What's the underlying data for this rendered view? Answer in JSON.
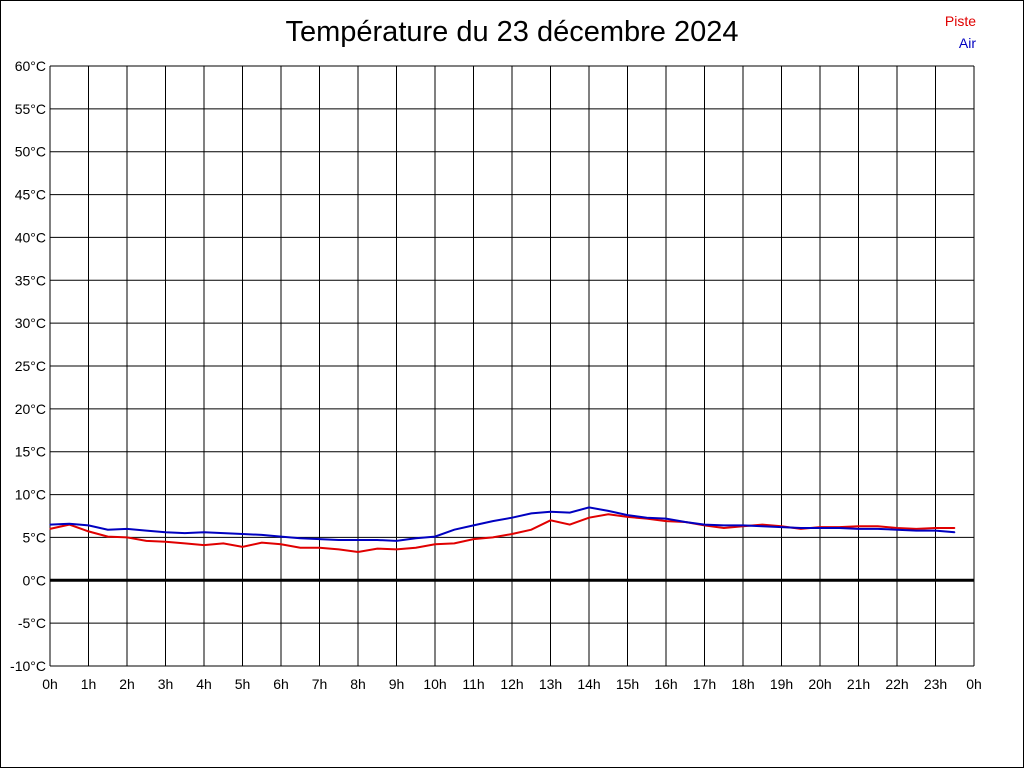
{
  "chart_data": {
    "type": "line",
    "title": "Température du 23 décembre 2024",
    "y_ticks": [
      "-10°C",
      "-5°C",
      "0°C",
      "5°C",
      "10°C",
      "15°C",
      "20°C",
      "25°C",
      "30°C",
      "35°C",
      "40°C",
      "45°C",
      "50°C",
      "55°C",
      "60°C"
    ],
    "x_ticks": [
      "0h",
      "1h",
      "2h",
      "3h",
      "4h",
      "5h",
      "6h",
      "7h",
      "8h",
      "9h",
      "10h",
      "11h",
      "12h",
      "13h",
      "14h",
      "15h",
      "16h",
      "17h",
      "18h",
      "19h",
      "20h",
      "21h",
      "22h",
      "23h",
      "0h"
    ],
    "ylim": [
      -10,
      60
    ],
    "xlim": [
      0,
      24
    ],
    "grid": true,
    "legend_position": "top-right",
    "series": [
      {
        "name": "Piste",
        "color": "#e00000",
        "x": [
          0,
          0.5,
          1,
          1.5,
          2,
          2.5,
          3,
          3.5,
          4,
          4.5,
          5,
          5.5,
          6,
          6.5,
          7,
          7.5,
          8,
          8.5,
          9,
          9.5,
          10,
          10.5,
          11,
          11.5,
          12,
          12.5,
          13,
          13.5,
          14,
          14.5,
          15,
          15.5,
          16,
          16.5,
          17,
          17.5,
          18,
          18.5,
          19,
          19.5,
          20,
          20.5,
          21,
          21.5,
          22,
          22.5,
          23,
          23.5
        ],
        "values": [
          6.0,
          6.5,
          5.7,
          5.1,
          5.0,
          4.6,
          4.5,
          4.3,
          4.1,
          4.3,
          3.9,
          4.4,
          4.2,
          3.8,
          3.8,
          3.6,
          3.3,
          3.7,
          3.6,
          3.8,
          4.2,
          4.3,
          4.8,
          5.0,
          5.4,
          5.9,
          7.0,
          6.5,
          7.3,
          7.7,
          7.4,
          7.2,
          6.9,
          6.8,
          6.4,
          6.1,
          6.3,
          6.5,
          6.3,
          6.0,
          6.2,
          6.2,
          6.3,
          6.3,
          6.1,
          6.0,
          6.1,
          6.1
        ]
      },
      {
        "name": "Air",
        "color": "#0000c0",
        "x": [
          0,
          0.5,
          1,
          1.5,
          2,
          2.5,
          3,
          3.5,
          4,
          4.5,
          5,
          5.5,
          6,
          6.5,
          7,
          7.5,
          8,
          8.5,
          9,
          9.5,
          10,
          10.5,
          11,
          11.5,
          12,
          12.5,
          13,
          13.5,
          14,
          14.5,
          15,
          15.5,
          16,
          16.5,
          17,
          17.5,
          18,
          18.5,
          19,
          19.5,
          20,
          20.5,
          21,
          21.5,
          22,
          22.5,
          23,
          23.5
        ],
        "values": [
          6.5,
          6.6,
          6.4,
          5.9,
          6.0,
          5.8,
          5.6,
          5.5,
          5.6,
          5.5,
          5.4,
          5.3,
          5.1,
          4.9,
          4.8,
          4.7,
          4.7,
          4.7,
          4.6,
          4.9,
          5.1,
          5.9,
          6.4,
          6.9,
          7.3,
          7.8,
          8.0,
          7.9,
          8.5,
          8.1,
          7.6,
          7.3,
          7.2,
          6.8,
          6.5,
          6.4,
          6.4,
          6.3,
          6.2,
          6.1,
          6.1,
          6.1,
          6.0,
          6.0,
          5.9,
          5.8,
          5.8,
          5.6
        ]
      }
    ]
  }
}
